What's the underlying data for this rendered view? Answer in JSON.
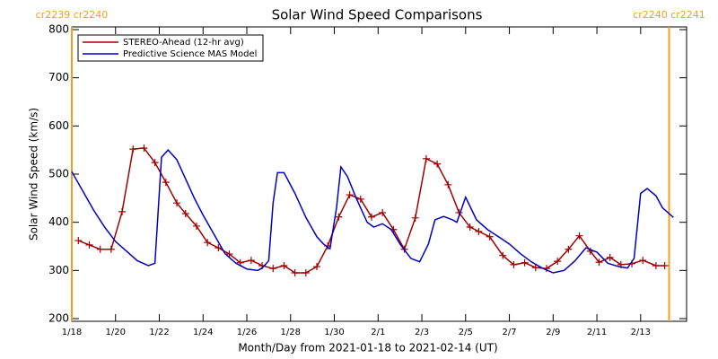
{
  "chart_data": {
    "type": "line",
    "title": "Solar Wind Speed Comparisons",
    "xlabel": "Month/Day from 2021-01-18 to 2021-02-14 (UT)",
    "ylabel": "Solar Wind Speed (km/s)",
    "xlim": [
      0,
      28.1
    ],
    "ylim": [
      200,
      800
    ],
    "xticks": [
      {
        "value": 0,
        "label": "1/18"
      },
      {
        "value": 2,
        "label": "1/20"
      },
      {
        "value": 4,
        "label": "1/22"
      },
      {
        "value": 6,
        "label": "1/24"
      },
      {
        "value": 8,
        "label": "1/26"
      },
      {
        "value": 10,
        "label": "1/28"
      },
      {
        "value": 12,
        "label": "1/30"
      },
      {
        "value": 14,
        "label": "2/1"
      },
      {
        "value": 16,
        "label": "2/3"
      },
      {
        "value": 18,
        "label": "2/5"
      },
      {
        "value": 20,
        "label": "2/7"
      },
      {
        "value": 22,
        "label": "2/9"
      },
      {
        "value": 24,
        "label": "2/11"
      },
      {
        "value": 26,
        "label": "2/13"
      }
    ],
    "yticks": [
      200,
      300,
      400,
      500,
      600,
      700,
      800
    ],
    "legend": "upper left",
    "annotations": [
      {
        "x": 0,
        "label": "cr2239 cr2240",
        "color": "#f0a020"
      },
      {
        "x": 27.3,
        "label": "cr2240 cr2241",
        "color": "#f0a020"
      }
    ],
    "series": [
      {
        "name": "STEREO-Ahead (12-hr avg)",
        "color": "#a00000",
        "markers": true,
        "x": [
          0.3,
          0.8,
          1.3,
          1.8,
          2.3,
          2.8,
          3.3,
          3.8,
          4.3,
          4.8,
          5.2,
          5.7,
          6.2,
          6.7,
          7.2,
          7.7,
          8.2,
          8.7,
          9.2,
          9.7,
          10.2,
          10.7,
          11.2,
          11.7,
          12.2,
          12.7,
          13.2,
          13.7,
          14.2,
          14.7,
          15.2,
          15.7,
          16.2,
          16.7,
          17.2,
          17.7,
          18.2,
          18.6,
          19.1,
          19.7,
          20.2,
          20.7,
          21.2,
          21.7,
          22.2,
          22.7,
          23.2,
          23.7,
          24.1,
          24.6,
          25.1,
          25.6,
          26.1,
          26.7,
          27.1
        ],
        "values": [
          362,
          353,
          344,
          344,
          422,
          552,
          554,
          524,
          483,
          440,
          418,
          392,
          358,
          347,
          334,
          316,
          321,
          310,
          304,
          310,
          295,
          295,
          308,
          351,
          411,
          457,
          448,
          411,
          420,
          385,
          344,
          409,
          532,
          521,
          478,
          420,
          390,
          381,
          370,
          331,
          312,
          316,
          306,
          304,
          319,
          344,
          372,
          340,
          317,
          327,
          312,
          314,
          321,
          310,
          310
        ]
      },
      {
        "name": "Predictive Science MAS Model",
        "color": "#0000c0",
        "markers": false,
        "x": [
          0,
          0.5,
          1,
          1.5,
          2,
          2.5,
          3,
          3.5,
          3.8,
          4.1,
          4.4,
          4.8,
          5.2,
          5.6,
          6,
          6.5,
          7,
          7.5,
          8,
          8.5,
          8.7,
          9,
          9.2,
          9.4,
          9.7,
          10.2,
          10.7,
          11.2,
          11.5,
          11.8,
          12.1,
          12.3,
          12.6,
          13,
          13.5,
          13.8,
          14.2,
          14.6,
          15,
          15.5,
          15.9,
          16.3,
          16.6,
          17,
          17.4,
          17.6,
          18,
          18.5,
          19,
          19.5,
          20,
          20.5,
          21,
          21.5,
          22,
          22.5,
          23,
          23.5,
          24,
          24.5,
          25,
          25.4,
          25.7,
          26,
          26.3,
          26.7,
          27,
          27.5
        ],
        "values": [
          505,
          465,
          425,
          390,
          360,
          340,
          320,
          310,
          315,
          535,
          550,
          530,
          490,
          450,
          415,
          375,
          335,
          315,
          303,
          300,
          305,
          320,
          440,
          503,
          503,
          460,
          410,
          370,
          355,
          345,
          430,
          515,
          495,
          450,
          400,
          390,
          397,
          385,
          355,
          325,
          318,
          355,
          405,
          412,
          405,
          400,
          452,
          405,
          385,
          370,
          355,
          335,
          318,
          305,
          295,
          300,
          320,
          347,
          338,
          315,
          308,
          305,
          325,
          460,
          470,
          455,
          430,
          410
        ]
      }
    ]
  }
}
